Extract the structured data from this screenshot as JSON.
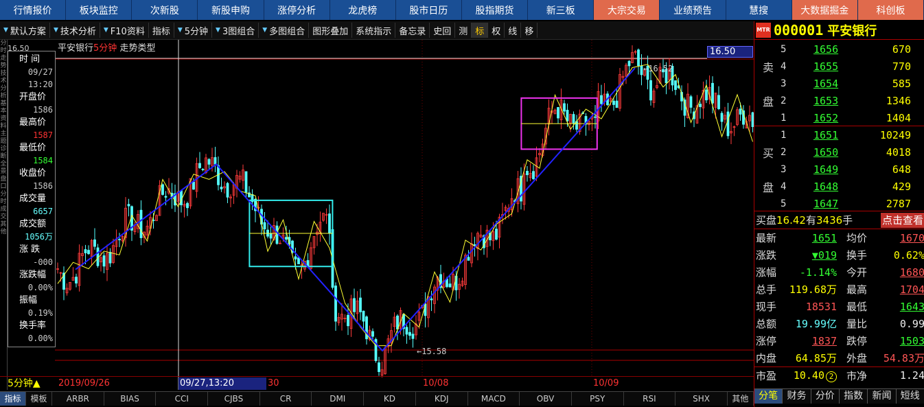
{
  "top_nav": [
    {
      "label": "行情报价",
      "hl": false
    },
    {
      "label": "板块监控",
      "hl": false
    },
    {
      "label": "次新股",
      "hl": false
    },
    {
      "label": "新股申购",
      "hl": false
    },
    {
      "label": "涨停分析",
      "hl": false
    },
    {
      "label": "龙虎榜",
      "hl": false
    },
    {
      "label": "股市日历",
      "hl": false
    },
    {
      "label": "股指期货",
      "hl": false
    },
    {
      "label": "新三板",
      "hl": false
    },
    {
      "label": "大宗交易",
      "hl": true
    },
    {
      "label": "业绩预告",
      "hl": false
    },
    {
      "label": "慧搜",
      "hl": false
    },
    {
      "label": "大数据掘金",
      "hl": true
    },
    {
      "label": "科创板",
      "hl": true
    }
  ],
  "toolbar": [
    {
      "label": "默认方案",
      "dd": true,
      "act": false
    },
    {
      "label": "技术分析",
      "dd": true,
      "act": false
    },
    {
      "label": "F10资料",
      "dd": true,
      "act": false
    },
    {
      "label": "指标",
      "dd": false,
      "act": false
    },
    {
      "label": "5分钟",
      "dd": true,
      "act": false
    },
    {
      "label": "3图组合",
      "dd": true,
      "act": false
    },
    {
      "label": "多图组合",
      "dd": true,
      "act": false
    },
    {
      "label": "图形叠加",
      "dd": false,
      "act": false
    },
    {
      "label": "系统指示",
      "dd": false,
      "act": false
    },
    {
      "label": "备忘录",
      "dd": false,
      "act": false
    },
    {
      "label": "史回",
      "dd": false,
      "act": false
    },
    {
      "label": "测",
      "dd": false,
      "act": false
    },
    {
      "label": "标",
      "dd": false,
      "act": true
    },
    {
      "label": "权",
      "dd": false,
      "act": false
    },
    {
      "label": "线",
      "dd": false,
      "act": false
    },
    {
      "label": "移",
      "dd": false,
      "act": false
    }
  ],
  "left_strip_text": "分时走势技术分析基本资料主题诊断全景盘口分时成交其他",
  "chart": {
    "title_stock": "平安银行",
    "title_period": "5分钟",
    "title_type": "走势类型",
    "price_tag": "16.50",
    "left_tag": "16.50",
    "high_label": "16.52",
    "low_label": "15.58",
    "period_label": "5分钟",
    "x_labels": [
      "2019/09/26",
      "30",
      "10/08",
      "10/09"
    ],
    "cur_time": "09/27,13:20"
  },
  "info_panel": {
    "time_label": "时 间",
    "date": "09/27",
    "time": "13:20",
    "open_label": "开盘价",
    "open": "1586",
    "high_label": "最高价",
    "high": "1587",
    "low_label": "最低价",
    "low": "1584",
    "close_label": "收盘价",
    "close": "1586",
    "vol_label": "成交量",
    "vol": "6657",
    "amt_label": "成交额",
    "amt": "1056万",
    "chg_label": "涨 跌",
    "chg": "-000",
    "pct_label": "涨跌幅",
    "pct": "0.00%",
    "amp_label": "振幅",
    "amp": "0.19%",
    "turn_label": "换手率",
    "turn": "0.00%",
    "extra": "1558"
  },
  "chart_data": {
    "type": "line",
    "x_labels": [
      "2019/09/26",
      "30",
      "10/08",
      "10/09"
    ],
    "price_range": [
      15.5,
      16.6
    ],
    "trend_pivots": [
      {
        "x": 0,
        "y": 15.85
      },
      {
        "x": 1,
        "y": 16.2
      },
      {
        "x": 2,
        "y": 15.58
      },
      {
        "x": 3,
        "y": 16.52
      },
      {
        "x": 4,
        "y": 16.32
      }
    ],
    "boxes": [
      {
        "x0": 1.2,
        "x1": 1.7,
        "y0": 15.86,
        "y1": 16.08
      },
      {
        "x0": 2.55,
        "x1": 2.85,
        "y0": 16.25,
        "y1": 16.42
      }
    ],
    "high": 16.52,
    "low": 15.58
  },
  "right_panel": {
    "mtr": "MTR",
    "code": "000001",
    "name": "平安银行",
    "sell_label_top": "卖",
    "sell_label_bottom": "盘",
    "buy_label_top": "买",
    "buy_label_bottom": "盘",
    "sell": [
      {
        "lv": "5",
        "pr": "1656",
        "vol": "670"
      },
      {
        "lv": "4",
        "pr": "1655",
        "vol": "770"
      },
      {
        "lv": "3",
        "pr": "1654",
        "vol": "585"
      },
      {
        "lv": "2",
        "pr": "1653",
        "vol": "1346"
      },
      {
        "lv": "1",
        "pr": "1652",
        "vol": "1404"
      }
    ],
    "buy": [
      {
        "lv": "1",
        "pr": "1651",
        "vol": "10249"
      },
      {
        "lv": "2",
        "pr": "1650",
        "vol": "4018"
      },
      {
        "lv": "3",
        "pr": "1649",
        "vol": "648"
      },
      {
        "lv": "4",
        "pr": "1648",
        "vol": "429"
      },
      {
        "lv": "5",
        "pr": "1647",
        "vol": "2787"
      }
    ],
    "buy_summary_a": "买盘",
    "buy_summary_price": "16.42",
    "buy_summary_b": "有",
    "buy_summary_qty": "3436",
    "buy_summary_c": "手",
    "click_view": "点击查看",
    "stats": [
      {
        "l1": "最新",
        "v1": "1651",
        "c1": "g ul",
        "l2": "均价",
        "v2": "1670",
        "c2": "r ul"
      },
      {
        "l1": "涨跌",
        "v1": "▼019",
        "c1": "g ul",
        "l2": "换手",
        "v2": "0.62%",
        "c2": "y"
      },
      {
        "l1": "涨幅",
        "v1": "-1.14%",
        "c1": "g",
        "l2": "今开",
        "v2": "1680",
        "c2": "r ul"
      },
      {
        "l1": "总手",
        "v1": "119.68万",
        "c1": "y",
        "l2": "最高",
        "v2": "1704",
        "c2": "r ul"
      },
      {
        "l1": "现手",
        "v1": "18531",
        "c1": "r",
        "l2": "最低",
        "v2": "1643",
        "c2": "g ul"
      },
      {
        "l1": "总额",
        "v1": "19.99亿",
        "c1": "c",
        "l2": "量比",
        "v2": "0.99",
        "c2": "w"
      },
      {
        "l1": "涨停",
        "v1": "1837",
        "c1": "r ul",
        "l2": "跌停",
        "v2": "1503",
        "c2": "g ul"
      },
      {
        "l1": "内盘",
        "v1": "64.85万",
        "c1": "y",
        "l2": "外盘",
        "v2": "54.83万",
        "c2": "r"
      }
    ],
    "stats2": {
      "l1": "市盈",
      "v1": "10.40",
      "badge": "2",
      "l2": "市净",
      "v2": "1.24"
    },
    "tabs": [
      {
        "label": "分笔",
        "act": true
      },
      {
        "label": "财务",
        "act": false
      },
      {
        "label": "分价",
        "act": false
      },
      {
        "label": "指数",
        "act": false
      },
      {
        "label": "新闻",
        "act": false
      },
      {
        "label": "短线",
        "act": false
      }
    ]
  },
  "indicator_tabs": [
    {
      "label": "指标",
      "act": true,
      "small": true
    },
    {
      "label": "模板",
      "act": false,
      "small": true
    },
    {
      "label": "ARBR",
      "act": false
    },
    {
      "label": "BIAS",
      "act": false
    },
    {
      "label": "CCI",
      "act": false
    },
    {
      "label": "CJBS",
      "act": false
    },
    {
      "label": "CR",
      "act": false
    },
    {
      "label": "DMI",
      "act": false
    },
    {
      "label": "KD",
      "act": false
    },
    {
      "label": "KDJ",
      "act": false
    },
    {
      "label": "MACD",
      "act": false
    },
    {
      "label": "OBV",
      "act": false
    },
    {
      "label": "PSY",
      "act": false
    },
    {
      "label": "RSI",
      "act": false
    },
    {
      "label": "SHX",
      "act": false
    },
    {
      "label": "其他",
      "act": false,
      "small": true
    }
  ]
}
